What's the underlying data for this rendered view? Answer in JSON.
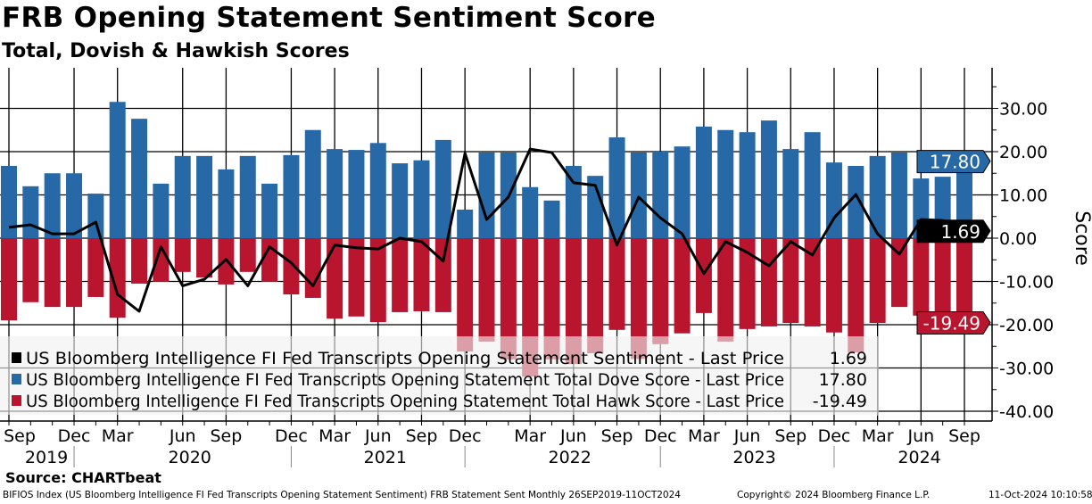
{
  "header": {
    "title": "FRB Opening Statement Sentiment Score",
    "subtitle": "Total, Dovish & Hawkish Scores"
  },
  "footer": {
    "source": "Source: CHARTbeat",
    "description": "BIFIOS Index (US Bloomberg Intelligence FI Fed Transcripts Opening Statement Sentiment) FRB Statement Sent  Monthly 26SEP2019-11OCT2024",
    "copyright": "Copyright© 2024 Bloomberg Finance L.P.",
    "timestamp": "11-Oct-2024 10:10:58"
  },
  "colors": {
    "dove": "#2769a6",
    "hawk": "#b9152e",
    "sentiment": "#000000",
    "legend_bg": "#f0f0f0"
  },
  "chart_data": {
    "type": "bar",
    "title": "FRB Opening Statement Sentiment Score",
    "subtitle": "Total, Dovish & Hawkish Scores",
    "ylabel": "Score",
    "ylim": [
      -42,
      40
    ],
    "yticks": [
      30,
      20,
      10,
      0,
      -10,
      -20,
      -30,
      -40
    ],
    "ytick_labels": [
      "30.00",
      "20.00",
      "10.00",
      "0.00",
      "-10.00",
      "-20.00",
      "-30.00",
      "-40.00"
    ],
    "grid": true,
    "legend_placement": "bottom-left",
    "x_month_labels": [
      {
        "index": 0,
        "label": "Sep"
      },
      {
        "index": 3,
        "label": "Dec"
      },
      {
        "index": 5,
        "label": "Mar"
      },
      {
        "index": 8,
        "label": "Jun"
      },
      {
        "index": 10,
        "label": "Sep"
      },
      {
        "index": 13,
        "label": "Dec"
      },
      {
        "index": 15,
        "label": "Mar"
      },
      {
        "index": 17,
        "label": "Jun"
      },
      {
        "index": 19,
        "label": "Sep"
      },
      {
        "index": 21,
        "label": "Dec"
      },
      {
        "index": 24,
        "label": "Mar"
      },
      {
        "index": 26,
        "label": "Jun"
      },
      {
        "index": 28,
        "label": "Sep"
      },
      {
        "index": 30,
        "label": "Dec"
      },
      {
        "index": 32,
        "label": "Mar"
      },
      {
        "index": 34,
        "label": "Jun"
      },
      {
        "index": 36,
        "label": "Sep"
      },
      {
        "index": 38,
        "label": "Dec"
      },
      {
        "index": 40,
        "label": "Mar"
      },
      {
        "index": 42,
        "label": "Jun"
      },
      {
        "index": 44,
        "label": "Sep"
      }
    ],
    "x_year_labels": [
      {
        "label": "2019",
        "center_index": 1.4,
        "sep_after_index": 3
      },
      {
        "label": "2020",
        "center_index": 8.0,
        "sep_after_index": 13
      },
      {
        "label": "2021",
        "center_index": 17.0,
        "sep_after_index": 21
      },
      {
        "label": "2022",
        "center_index": 25.5,
        "sep_after_index": 30
      },
      {
        "label": "2023",
        "center_index": 34.0,
        "sep_after_index": 38
      },
      {
        "label": "2024",
        "center_index": 41.6,
        "sep_after_index": null
      }
    ],
    "series": [
      {
        "name": "US Bloomberg Intelligence FI Fed Transcripts Opening Statement Sentiment - Last Price",
        "type": "line",
        "last": "1.69",
        "values": [
          2.5,
          3.1,
          1.0,
          1.0,
          3.7,
          -13.0,
          -16.9,
          -2.0,
          -11.0,
          -9.5,
          -4.9,
          -11.0,
          -2.0,
          -5.7,
          -11.0,
          -1.6,
          -2.2,
          -2.5,
          0.0,
          -0.8,
          -5.3,
          19.6,
          4.3,
          9.5,
          20.6,
          19.8,
          12.8,
          12.2,
          -1.6,
          9.5,
          4.7,
          1.0,
          -8.2,
          -0.8,
          -3.3,
          -6.4,
          -0.8,
          -3.9,
          4.7,
          10.1,
          1.0,
          -3.7,
          4.3,
          4.1,
          1.69
        ]
      },
      {
        "name": "US Bloomberg Intelligence FI Fed Transcripts Opening Statement Total Dove Score - Last Price",
        "type": "bar",
        "last": "17.80",
        "values": [
          16.7,
          12.0,
          15.0,
          15.0,
          10.3,
          31.5,
          27.6,
          12.6,
          19.0,
          19.0,
          15.9,
          19.0,
          12.6,
          19.2,
          25.0,
          20.6,
          20.4,
          22.0,
          17.3,
          18.0,
          22.7,
          6.6,
          19.8,
          19.8,
          11.8,
          8.7,
          16.7,
          14.4,
          23.3,
          19.8,
          20.0,
          21.2,
          25.8,
          25.0,
          24.5,
          27.2,
          20.6,
          24.5,
          17.5,
          16.7,
          19.0,
          19.8,
          13.8,
          14.2,
          17.8
        ]
      },
      {
        "name": "US Bloomberg Intelligence FI Fed Transcripts Opening Statement Total Hawk Score - Last Price",
        "type": "bar",
        "last": "-19.49",
        "values": [
          -19.0,
          -14.8,
          -15.9,
          -15.9,
          -13.6,
          -18.4,
          -10.5,
          -10.1,
          -7.8,
          -9.1,
          -10.7,
          -7.8,
          -10.1,
          -13.0,
          -13.8,
          -18.6,
          -18.1,
          -19.4,
          -17.1,
          -16.9,
          -17.1,
          -26.2,
          -23.9,
          -28.0,
          -32.0,
          -28.0,
          -29.1,
          -26.6,
          -21.2,
          -27.9,
          -24.5,
          -22.0,
          -17.3,
          -23.9,
          -21.0,
          -20.4,
          -19.6,
          -20.4,
          -21.8,
          -26.4,
          -19.6,
          -15.9,
          -17.9,
          -18.1,
          -19.49
        ]
      }
    ]
  }
}
